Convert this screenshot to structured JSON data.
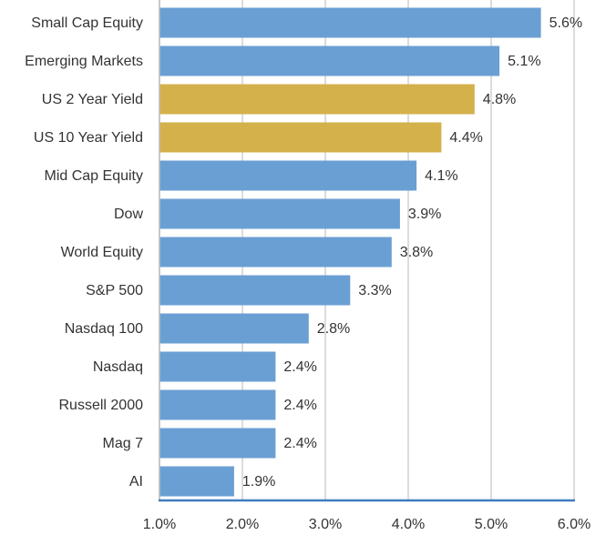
{
  "chart_data": {
    "type": "barh",
    "categories": [
      "Small Cap Equity",
      "Emerging Markets",
      "US 2 Year Yield",
      "US 10 Year Yield",
      "Mid Cap Equity",
      "Dow",
      "World Equity",
      "S&P 500",
      "Nasdaq 100",
      "Nasdaq",
      "Russell 2000",
      "Mag 7",
      "AI"
    ],
    "values": [
      5.6,
      5.1,
      4.8,
      4.4,
      4.1,
      3.9,
      3.8,
      3.3,
      2.8,
      2.4,
      2.4,
      2.4,
      1.9
    ],
    "value_labels": [
      "5.6%",
      "5.1%",
      "4.8%",
      "4.4%",
      "4.1%",
      "3.9%",
      "3.8%",
      "3.3%",
      "2.8%",
      "2.4%",
      "2.4%",
      "2.4%",
      "1.9%"
    ],
    "colors": [
      "#6a9fd3",
      "#6a9fd3",
      "#d4b14b",
      "#d4b14b",
      "#6a9fd3",
      "#6a9fd3",
      "#6a9fd3",
      "#6a9fd3",
      "#6a9fd3",
      "#6a9fd3",
      "#6a9fd3",
      "#6a9fd3",
      "#6a9fd3"
    ],
    "xlim": [
      1,
      6
    ],
    "xticks": [
      {
        "value": 1,
        "label": "1.0%"
      },
      {
        "value": 2,
        "label": "2.0%"
      },
      {
        "value": 3,
        "label": "3.0%"
      },
      {
        "value": 4,
        "label": "4.0%"
      },
      {
        "value": 5,
        "label": "5.0%"
      },
      {
        "value": 6,
        "label": "6.0%"
      }
    ],
    "grid": true
  }
}
